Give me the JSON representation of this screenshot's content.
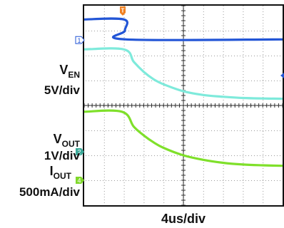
{
  "chart_data": {
    "type": "line",
    "xlabel": "4us/div",
    "grid": true,
    "divisions": {
      "x": 10,
      "y": 8
    },
    "trigger_marker": "T",
    "channels": [
      {
        "id": "1",
        "name_main": "V",
        "name_sub": "EN",
        "scale": "5V/div",
        "color": "#2255d6",
        "label_color": "#2255d6",
        "x": [
          0.0,
          2.0,
          2.05,
          2.1,
          10.0
        ],
        "y": [
          3.45,
          3.45,
          3.0,
          2.65,
          2.65
        ]
      },
      {
        "id": "2",
        "name_main": "V",
        "name_sub": "OUT",
        "scale": "1V/div",
        "color": "#7eeadb",
        "label_color": "#3aa898",
        "x": [
          0.0,
          2.0,
          2.5,
          3.0,
          3.5,
          4.0,
          5.0,
          6.0,
          7.0,
          8.0,
          9.0,
          10.0
        ],
        "y": [
          2.25,
          2.25,
          1.75,
          1.35,
          1.05,
          0.85,
          0.57,
          0.42,
          0.35,
          0.3,
          0.28,
          0.27
        ]
      },
      {
        "id": "4",
        "name_main": "I",
        "name_sub": "OUT",
        "scale": "500mA/div",
        "color": "#7fe02a",
        "label_color": "#7fd82a",
        "x": [
          0.0,
          1.9,
          2.5,
          3.0,
          3.5,
          4.0,
          5.0,
          6.0,
          7.0,
          8.0,
          9.0,
          10.0
        ],
        "y": [
          -0.25,
          -0.25,
          -0.85,
          -1.2,
          -1.48,
          -1.7,
          -2.0,
          -2.18,
          -2.3,
          -2.37,
          -2.4,
          -2.42
        ]
      }
    ]
  }
}
